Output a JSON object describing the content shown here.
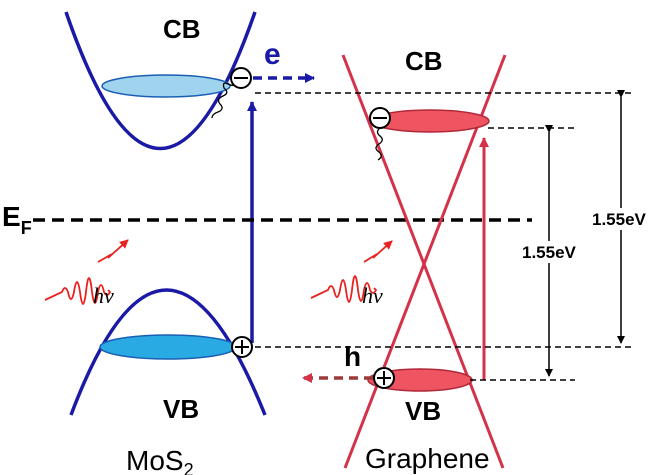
{
  "mos2": {
    "cb_label": "CB",
    "vb_label": "VB",
    "material": "MoS",
    "material_sub": "2",
    "electron_label": "e",
    "photon_label": "hν"
  },
  "fermi": {
    "label": "E",
    "label_sub": "F"
  },
  "graphene": {
    "cb_label": "CB",
    "vb_label": "VB",
    "material": "Graphene",
    "hole_label": "h",
    "photon_label": "hν"
  },
  "energies": {
    "inner_gap": "1.55eV",
    "outer_gap": "1.55eV"
  },
  "colors": {
    "mos2_band": "#1a1aa6",
    "mos2_fill": "#29a7e1",
    "graphene_band": "#d3324a",
    "graphene_fill": "#ee5560",
    "photon": "#e8221f",
    "hole_arrow": "#9b3a3a"
  }
}
